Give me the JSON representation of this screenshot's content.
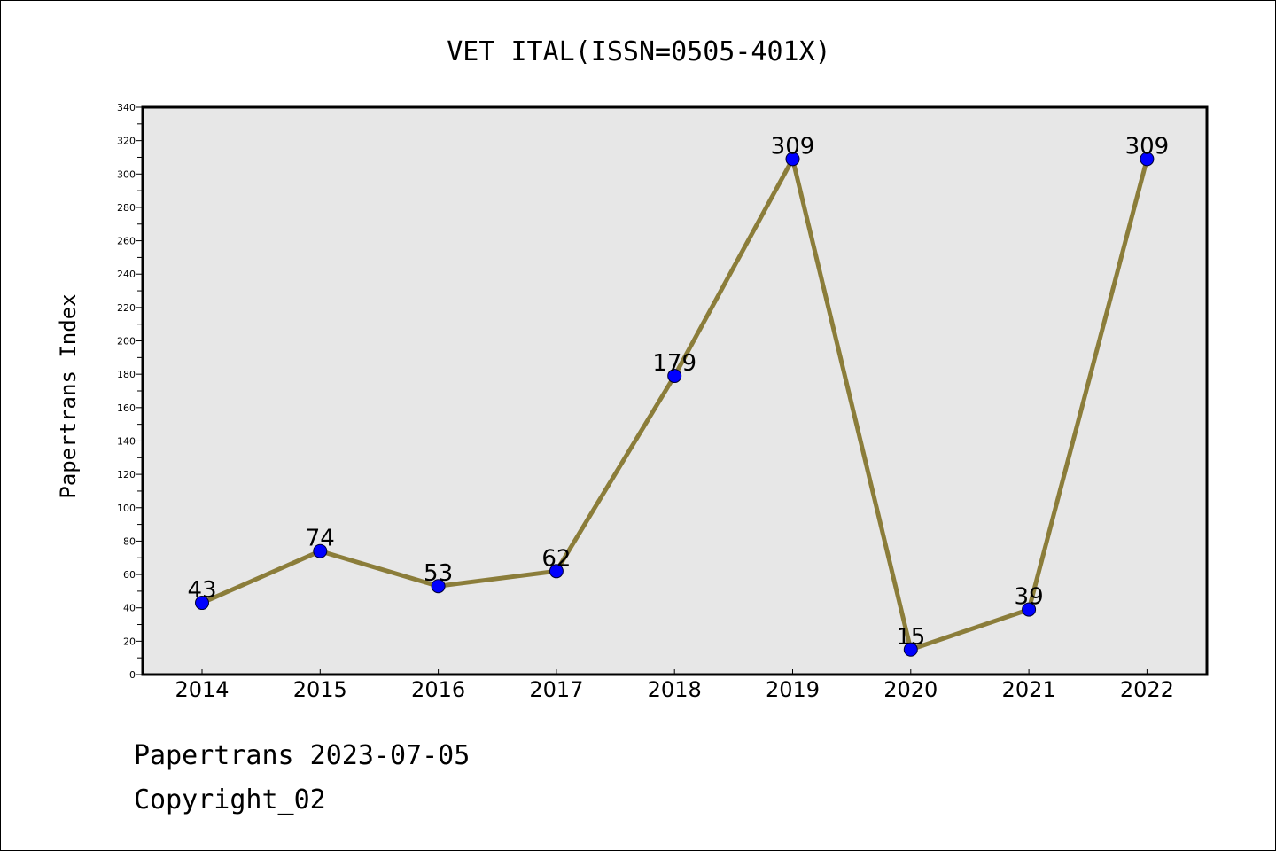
{
  "chart_data": {
    "type": "line",
    "title": "VET ITAL(ISSN=0505-401X)",
    "xlabel": "",
    "ylabel": "Papertrans Index",
    "categories": [
      "2014",
      "2015",
      "2016",
      "2017",
      "2018",
      "2019",
      "2020",
      "2021",
      "2022"
    ],
    "values": [
      43,
      74,
      53,
      62,
      179,
      309,
      15,
      39,
      309
    ],
    "ylim": [
      0,
      340
    ],
    "ytick_step": 20,
    "grid": false,
    "data_labels": true,
    "colors": {
      "line": "#8B7D3A",
      "marker": "#0000FF",
      "plot_bg": "#E7E7E7"
    }
  },
  "footer": {
    "line1": "Papertrans 2023-07-05",
    "line2": "Copyright_02"
  }
}
